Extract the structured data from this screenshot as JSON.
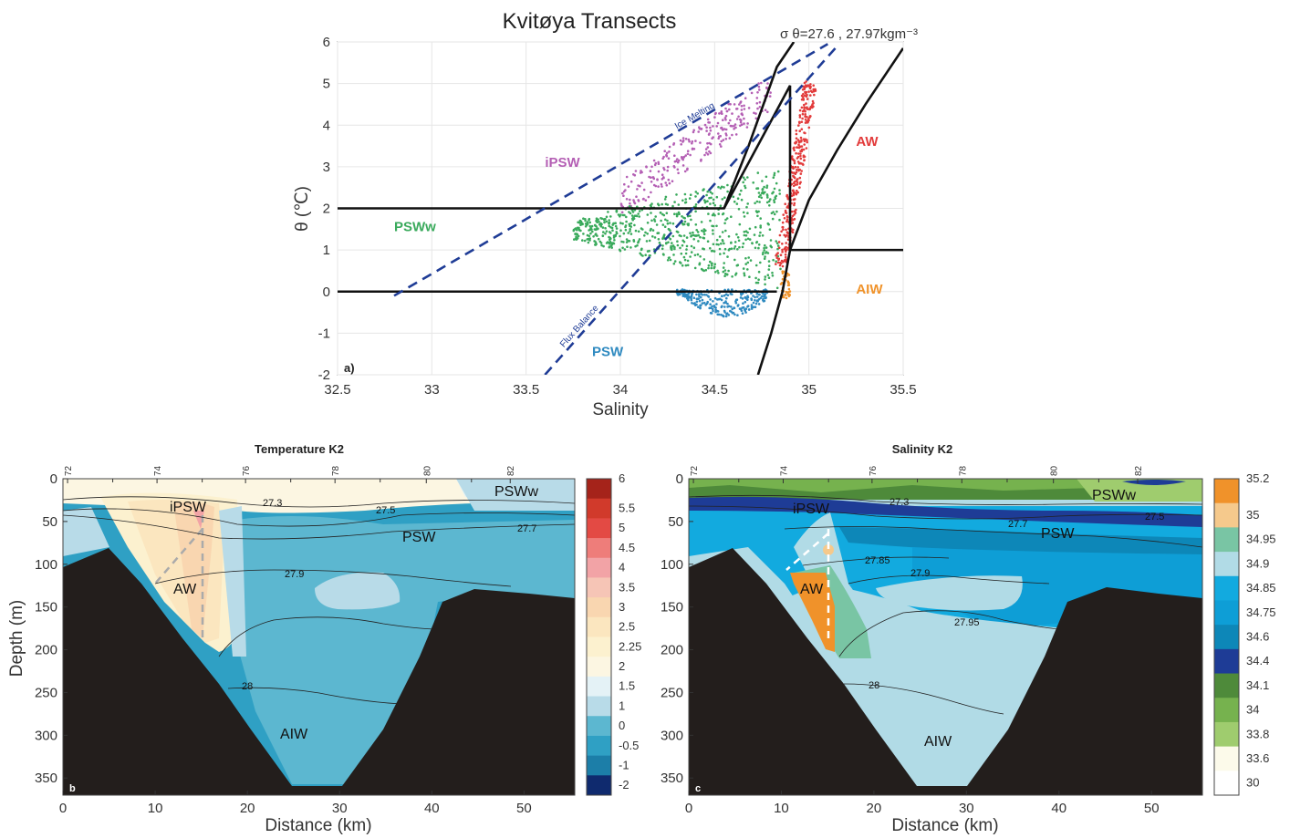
{
  "chart_data": [
    {
      "type": "scatter",
      "panel": "a)",
      "title": "Kvitøya Transects",
      "density_label": "σ θ=27.6 ,  27.97kgm⁻³",
      "xlabel": "Salinity",
      "ylabel": "θ (℃)",
      "xlim": [
        32.5,
        35.5
      ],
      "ylim": [
        -2,
        6
      ],
      "xticks": [
        "32.5",
        "33",
        "33.5",
        "34",
        "34.5",
        "35",
        "35.5"
      ],
      "yticks": [
        "6",
        "5",
        "4",
        "3",
        "2",
        "1",
        "0",
        "-1",
        "-2"
      ],
      "grid": true,
      "colors": {
        "iPSW": "#b45fb4",
        "PSWw": "#3aaa5c",
        "PSW": "#2f8ac0",
        "AW": "#e23b3b",
        "AIW": "#f0932b",
        "mixing_lines": "#1f3c96",
        "boundaries": "#111111"
      },
      "water_mass_labels": [
        {
          "name": "iPSW",
          "s": 33.6,
          "t": 3.0
        },
        {
          "name": "PSWw",
          "s": 32.8,
          "t": 1.45
        },
        {
          "name": "PSW",
          "s": 33.85,
          "t": -1.55
        },
        {
          "name": "AW",
          "s": 35.25,
          "t": 3.5
        },
        {
          "name": "AIW",
          "s": 35.25,
          "t": -0.05
        }
      ],
      "mixing_lines": [
        {
          "name": "Ice Melting",
          "from": [
            32.8,
            -0.1
          ],
          "to": [
            35.1,
            5.95
          ],
          "label_at": [
            34.3,
            3.9
          ]
        },
        {
          "name": "Flux Balance",
          "from": [
            33.6,
            -2.0
          ],
          "to": [
            35.15,
            5.9
          ],
          "label_at": [
            33.7,
            -1.35
          ]
        }
      ],
      "series": [
        {
          "name": "iPSW",
          "clusters": [
            {
              "s": [
                34.0,
                34.8
              ],
              "t": [
                2.2,
                4.9
              ],
              "slope_center": [
                [
                  34.0,
                  2.2
                ],
                [
                  34.8,
                  4.8
                ]
              ],
              "n": 260
            }
          ]
        },
        {
          "name": "PSWw",
          "clusters": [
            {
              "s": [
                33.75,
                34.85
              ],
              "t": [
                0.1,
                3.0
              ],
              "n": 700
            }
          ]
        },
        {
          "name": "PSW",
          "clusters": [
            {
              "s": [
                34.3,
                34.78
              ],
              "t": [
                -0.6,
                0.05
              ],
              "n": 260
            }
          ]
        },
        {
          "name": "AW",
          "clusters": [
            {
              "s": [
                34.82,
                35.07
              ],
              "t": [
                0.6,
                5.05
              ],
              "n": 320
            }
          ]
        },
        {
          "name": "AIW",
          "clusters": [
            {
              "s": [
                34.85,
                34.9
              ],
              "t": [
                -0.2,
                0.5
              ],
              "n": 40
            }
          ]
        }
      ]
    },
    {
      "type": "heatmap",
      "panel": "b",
      "title": "Temperature K2",
      "xlabel": "Distance (km)",
      "ylabel": "Depth (m)",
      "xlim": [
        0,
        55.5
      ],
      "ylim": [
        370,
        0
      ],
      "xticks": [
        "0",
        "10",
        "20",
        "30",
        "40",
        "50"
      ],
      "yticks": [
        "0",
        "50",
        "100",
        "150",
        "200",
        "250",
        "300",
        "350"
      ],
      "top_ticks": [
        "72",
        "74",
        "76",
        "78",
        "80",
        "82"
      ],
      "colorbar": [
        {
          "label": "6",
          "color": "#a5231a"
        },
        {
          "label": "5.5",
          "color": "#d13a2b"
        },
        {
          "label": "5",
          "color": "#e34a44"
        },
        {
          "label": "4.5",
          "color": "#ee7d7a"
        },
        {
          "label": "4",
          "color": "#f2a3a6"
        },
        {
          "label": "3.5",
          "color": "#f6c5b6"
        },
        {
          "label": "3",
          "color": "#f9d6b0"
        },
        {
          "label": "2.5",
          "color": "#fbe6bf"
        },
        {
          "label": "2.25",
          "color": "#fcf1cf"
        },
        {
          "label": "2",
          "color": "#fcf6e2"
        },
        {
          "label": "1.5",
          "color": "#e4f2f6"
        },
        {
          "label": "1",
          "color": "#b8dbe8"
        },
        {
          "label": "0",
          "color": "#5cb7d0"
        },
        {
          "label": "-0.5",
          "color": "#2fa0c4"
        },
        {
          "label": "-1",
          "color": "#1c7ea8"
        },
        {
          "label": "-2",
          "color": "#0f2a6e"
        }
      ],
      "isopycnals": [
        "27.3",
        "27.5",
        "27.7",
        "27.9",
        "28"
      ],
      "water_masses": [
        "iPSW",
        "PSWw",
        "PSW",
        "AW",
        "AIW"
      ]
    },
    {
      "type": "heatmap",
      "panel": "c",
      "title": "Salinity K2",
      "xlabel": "Distance (km)",
      "ylabel": "",
      "xlim": [
        0,
        55.5
      ],
      "ylim": [
        370,
        0
      ],
      "xticks": [
        "0",
        "10",
        "20",
        "30",
        "40",
        "50"
      ],
      "yticks": [
        "0",
        "50",
        "100",
        "150",
        "200",
        "250",
        "300",
        "350"
      ],
      "top_ticks": [
        "72",
        "74",
        "76",
        "78",
        "80",
        "82"
      ],
      "colorbar": [
        {
          "label": "35.2",
          "color": "#f0922a"
        },
        {
          "label": "35",
          "color": "#f5c98c"
        },
        {
          "label": "34.95",
          "color": "#79c5a4"
        },
        {
          "label": "34.9",
          "color": "#b1dbe6"
        },
        {
          "label": "34.85",
          "color": "#12aadf"
        },
        {
          "label": "34.75",
          "color": "#0e9ed6"
        },
        {
          "label": "34.6",
          "color": "#0d87b8"
        },
        {
          "label": "34.4",
          "color": "#1e3c96"
        },
        {
          "label": "34.1",
          "color": "#4e8a3a"
        },
        {
          "label": "34",
          "color": "#76b24e"
        },
        {
          "label": "33.8",
          "color": "#9fcc6e"
        },
        {
          "label": "33.6",
          "color": "#fcfaea"
        },
        {
          "label": "30",
          "color": "#ffffff"
        }
      ],
      "isopycnals": [
        "27.3",
        "27.5",
        "27.7",
        "27.85",
        "27.9",
        "27.95",
        "28"
      ],
      "water_masses": [
        "iPSW",
        "PSWw",
        "PSW",
        "AW",
        "AIW"
      ]
    }
  ]
}
